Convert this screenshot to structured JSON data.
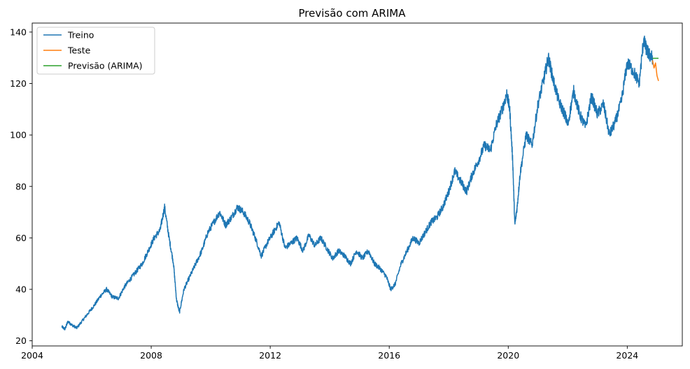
{
  "chart_data": {
    "type": "line",
    "title": "Previsão com ARIMA",
    "xlabel": "",
    "ylabel": "",
    "xlim": [
      2004.0,
      2025.85
    ],
    "ylim": [
      18.0,
      143.5
    ],
    "xticks": [
      2004,
      2008,
      2012,
      2016,
      2020,
      2024
    ],
    "yticks": [
      20,
      40,
      60,
      80,
      100,
      120,
      140
    ],
    "grid": false,
    "legend_position": "upper-left",
    "series": [
      {
        "name": "Treino",
        "color": "#1f77b4",
        "x": [
          2005.0,
          2005.1,
          2005.2,
          2005.35,
          2005.5,
          2005.7,
          2005.9,
          2006.1,
          2006.3,
          2006.5,
          2006.7,
          2006.9,
          2007.1,
          2007.3,
          2007.5,
          2007.7,
          2007.9,
          2008.1,
          2008.3,
          2008.45,
          2008.6,
          2008.75,
          2008.85,
          2008.95,
          2009.1,
          2009.3,
          2009.5,
          2009.7,
          2009.9,
          2010.1,
          2010.3,
          2010.5,
          2010.7,
          2010.9,
          2011.1,
          2011.3,
          2011.5,
          2011.7,
          2011.9,
          2012.1,
          2012.3,
          2012.5,
          2012.7,
          2012.9,
          2013.1,
          2013.3,
          2013.5,
          2013.7,
          2013.9,
          2014.1,
          2014.3,
          2014.5,
          2014.7,
          2014.9,
          2015.1,
          2015.3,
          2015.5,
          2015.7,
          2015.9,
          2016.05,
          2016.2,
          2016.4,
          2016.6,
          2016.8,
          2017.0,
          2017.2,
          2017.4,
          2017.6,
          2017.8,
          2018.0,
          2018.2,
          2018.4,
          2018.6,
          2018.8,
          2019.0,
          2019.2,
          2019.4,
          2019.6,
          2019.8,
          2019.95,
          2020.05,
          2020.15,
          2020.22,
          2020.3,
          2020.4,
          2020.6,
          2020.8,
          2021.0,
          2021.2,
          2021.35,
          2021.5,
          2021.7,
          2021.9,
          2022.0,
          2022.2,
          2022.4,
          2022.6,
          2022.8,
          2023.0,
          2023.2,
          2023.4,
          2023.6,
          2023.8,
          2024.0,
          2024.2,
          2024.4,
          2024.55,
          2024.65,
          2024.75,
          2024.85
        ],
        "values": [
          25.5,
          24.5,
          27.5,
          26.0,
          25.0,
          28.0,
          31.0,
          34.0,
          37.5,
          40.0,
          37.0,
          36.5,
          41.0,
          44.0,
          47.0,
          50.0,
          55.0,
          60.0,
          63.0,
          72.0,
          60.0,
          50.0,
          36.0,
          31.0,
          40.0,
          45.0,
          50.0,
          55.0,
          62.0,
          66.0,
          70.0,
          65.0,
          68.0,
          72.0,
          70.0,
          66.0,
          60.0,
          53.0,
          58.0,
          62.0,
          66.0,
          56.0,
          58.0,
          60.0,
          55.0,
          61.0,
          57.0,
          60.0,
          56.0,
          52.0,
          55.0,
          53.0,
          50.0,
          55.0,
          52.0,
          55.0,
          50.0,
          48.0,
          45.0,
          40.0,
          42.0,
          50.0,
          55.0,
          60.0,
          58.0,
          62.0,
          66.0,
          68.0,
          72.0,
          78.0,
          86.0,
          82.0,
          78.0,
          85.0,
          90.0,
          96.0,
          94.0,
          104.0,
          110.0,
          116.0,
          110.0,
          90.0,
          65.0,
          72.0,
          85.0,
          100.0,
          96.0,
          112.0,
          122.0,
          130.0,
          122.0,
          113.0,
          108.0,
          104.0,
          117.0,
          108.0,
          103.0,
          115.0,
          108.0,
          112.0,
          100.0,
          105.0,
          113.0,
          128.0,
          125.0,
          120.0,
          137.0,
          133.0,
          131.0,
          130.0
        ]
      },
      {
        "name": "Teste",
        "color": "#ff7f0e",
        "x": [
          2024.85,
          2024.9,
          2024.95,
          2025.0,
          2025.05
        ],
        "values": [
          129.0,
          126.0,
          128.0,
          123.0,
          121.0
        ]
      },
      {
        "name": "Previsão (ARIMA)",
        "color": "#2ca02c",
        "x": [
          2024.85,
          2025.05
        ],
        "values": [
          129.8,
          129.8
        ]
      }
    ]
  }
}
